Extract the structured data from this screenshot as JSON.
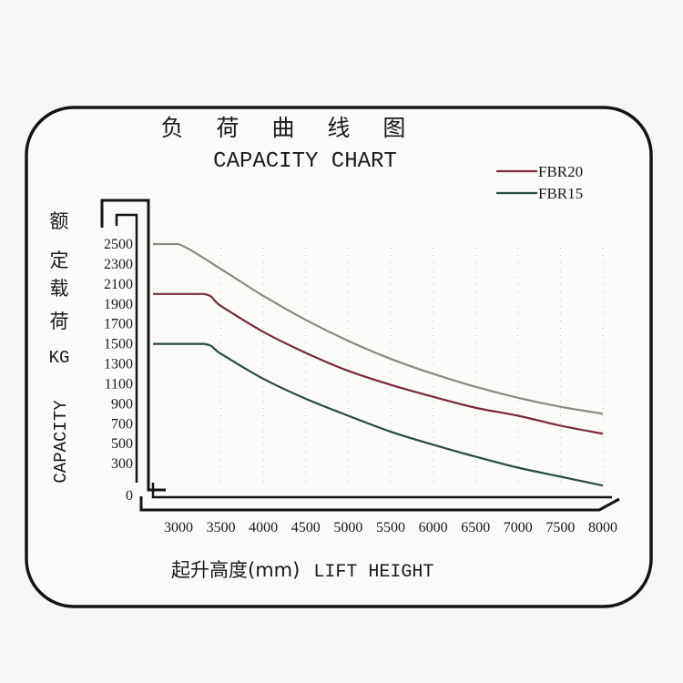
{
  "chart_data": {
    "type": "line",
    "title": "负 荷 曲 线 图",
    "subtitle": "CAPACITY CHART",
    "ylabel_cn": [
      "额",
      "定",
      "载",
      "荷",
      "KG"
    ],
    "ylabel_en": "CAPACITY",
    "xlabel_cn": "起升高度(mm)",
    "xlabel_en": "LIFT HEIGHT",
    "xlim": [
      2700,
      8000
    ],
    "ylim": [
      0,
      2500
    ],
    "x_ticks": [
      "3000",
      "3500",
      "4000",
      "4500",
      "5000",
      "5500",
      "6000",
      "6500",
      "7000",
      "7500",
      "8000"
    ],
    "x_tick_values": [
      3000,
      3500,
      4000,
      4500,
      5000,
      5500,
      6000,
      6500,
      7000,
      7500,
      8000
    ],
    "y_ticks": [
      "0",
      "300",
      "500",
      "700",
      "900",
      "1100",
      "1300",
      "1500",
      "1700",
      "1900",
      "2100",
      "2300",
      "2500"
    ],
    "y_tick_values": [
      0,
      300,
      500,
      700,
      900,
      1100,
      1300,
      1500,
      1700,
      1900,
      2100,
      2300,
      2500
    ],
    "legend_position": "top-right",
    "legend": [
      {
        "name": "FBR20",
        "color": "#7a2a3a"
      },
      {
        "name": "FBR15",
        "color": "#2b4a40"
      }
    ],
    "series": [
      {
        "name": "",
        "color": "#8a8a80",
        "x": [
          2700,
          3000,
          3500,
          4000,
          4500,
          5000,
          5500,
          6000,
          6500,
          7000,
          7500,
          8000
        ],
        "y": [
          2500,
          2500,
          2250,
          1980,
          1740,
          1530,
          1350,
          1200,
          1070,
          960,
          870,
          800
        ]
      },
      {
        "name": "FBR20",
        "color": "#7a2a3a",
        "x": [
          2700,
          3300,
          3500,
          4000,
          4500,
          5000,
          5500,
          6000,
          6500,
          7000,
          7500,
          8000
        ],
        "y": [
          2000,
          2000,
          1880,
          1620,
          1410,
          1230,
          1090,
          970,
          860,
          780,
          680,
          600
        ]
      },
      {
        "name": "FBR15",
        "color": "#2b4a40",
        "x": [
          2700,
          3300,
          3500,
          4000,
          4500,
          5000,
          5500,
          6000,
          6500,
          7000,
          7500,
          8000
        ],
        "y": [
          1500,
          1500,
          1400,
          1150,
          950,
          780,
          620,
          490,
          370,
          260,
          170,
          80
        ]
      }
    ]
  }
}
